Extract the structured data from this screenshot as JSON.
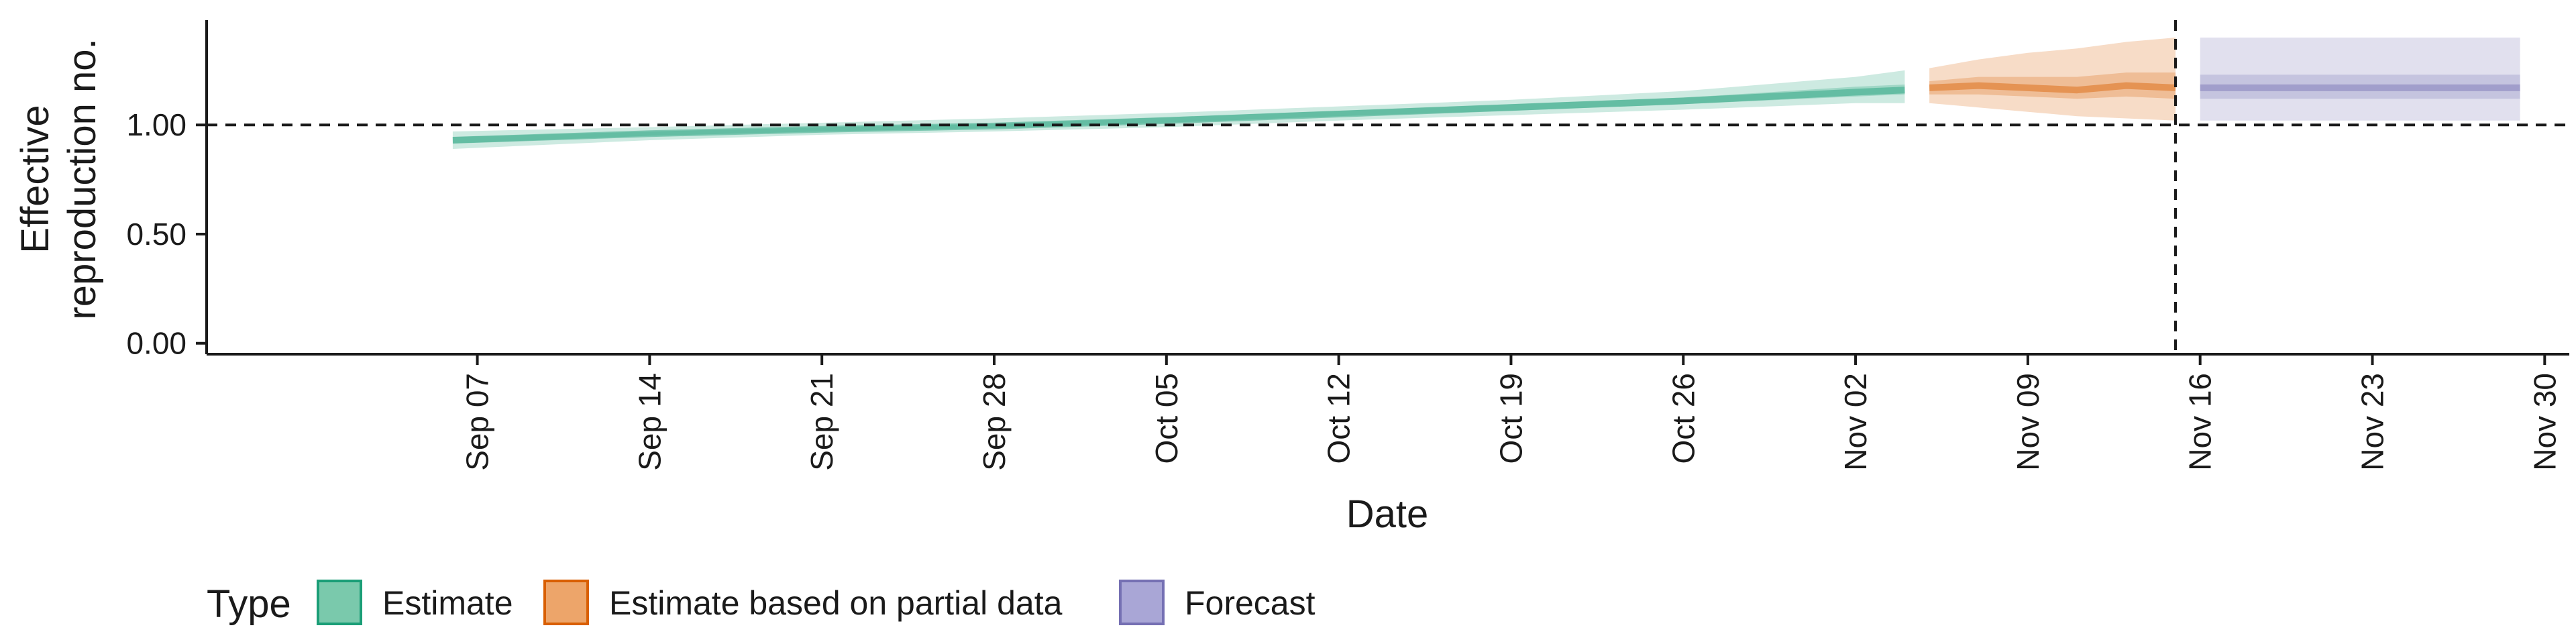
{
  "chart_data": {
    "type": "area",
    "xlabel": "Date",
    "ylabel": [
      "Effective",
      "reproduction no."
    ],
    "x_ticks": [
      "Sep 07",
      "Sep 14",
      "Sep 21",
      "Sep 28",
      "Oct 05",
      "Oct 12",
      "Oct 19",
      "Oct 26",
      "Nov 02",
      "Nov 09",
      "Nov 16",
      "Nov 23",
      "Nov 30"
    ],
    "x_tick_dates": [
      "2020-09-07",
      "2020-09-14",
      "2020-09-21",
      "2020-09-28",
      "2020-10-05",
      "2020-10-12",
      "2020-10-19",
      "2020-10-26",
      "2020-11-02",
      "2020-11-09",
      "2020-11-16",
      "2020-11-23",
      "2020-11-30"
    ],
    "xlim": [
      "2020-08-27",
      "2020-12-01"
    ],
    "y_ticks": [
      "0.00",
      "0.50",
      "1.00"
    ],
    "ylim": [
      -0.05,
      1.48
    ],
    "reference_lines": {
      "horizontal_y": 1.0,
      "vertical_date": "2020-11-15"
    },
    "grid": false,
    "legend_position": "bottom-left",
    "legend": {
      "title": "Type",
      "entries": [
        {
          "label": "Estimate",
          "fill": "#7ac9ac",
          "border": "#1b9e77"
        },
        {
          "label": "Estimate based on partial data",
          "fill": "#eda56a",
          "border": "#d95f02"
        },
        {
          "label": "Forecast",
          "fill": "#a9a6d6",
          "border": "#7570b3"
        }
      ]
    },
    "series": [
      {
        "name": "Estimate",
        "color": "#1b9e77",
        "dates": [
          "2020-09-06",
          "2020-09-14",
          "2020-09-21",
          "2020-09-28",
          "2020-10-05",
          "2020-10-12",
          "2020-10-19",
          "2020-10-26",
          "2020-11-02",
          "2020-11-04"
        ],
        "median": [
          0.93,
          0.96,
          0.98,
          0.995,
          1.02,
          1.05,
          1.08,
          1.11,
          1.15,
          1.16
        ],
        "lower_50": [
          0.915,
          0.95,
          0.97,
          0.985,
          1.01,
          1.04,
          1.065,
          1.095,
          1.13,
          1.14
        ],
        "upper_50": [
          0.945,
          0.97,
          0.99,
          1.005,
          1.035,
          1.065,
          1.095,
          1.125,
          1.175,
          1.185
        ],
        "lower_90": [
          0.89,
          0.93,
          0.955,
          0.97,
          0.99,
          1.02,
          1.045,
          1.07,
          1.1,
          1.1
        ],
        "upper_90": [
          0.97,
          0.99,
          1.01,
          1.03,
          1.055,
          1.085,
          1.115,
          1.155,
          1.22,
          1.25
        ]
      },
      {
        "name": "Estimate based on partial data",
        "color": "#d95f02",
        "dates": [
          "2020-11-05",
          "2020-11-07",
          "2020-11-09",
          "2020-11-11",
          "2020-11-13",
          "2020-11-15"
        ],
        "median": [
          1.17,
          1.18,
          1.17,
          1.16,
          1.18,
          1.17
        ],
        "lower_50": [
          1.14,
          1.14,
          1.13,
          1.12,
          1.13,
          1.12
        ],
        "upper_50": [
          1.2,
          1.22,
          1.22,
          1.22,
          1.24,
          1.24
        ],
        "lower_90": [
          1.1,
          1.08,
          1.06,
          1.04,
          1.03,
          1.02
        ],
        "upper_90": [
          1.26,
          1.3,
          1.33,
          1.35,
          1.38,
          1.4
        ]
      },
      {
        "name": "Forecast",
        "color": "#7570b3",
        "dates": [
          "2020-11-16",
          "2020-11-29"
        ],
        "median": [
          1.17,
          1.17
        ],
        "lower_50": [
          1.12,
          1.12
        ],
        "upper_50": [
          1.23,
          1.23
        ],
        "lower_90": [
          1.02,
          1.02
        ],
        "upper_90": [
          1.4,
          1.4
        ]
      }
    ]
  }
}
